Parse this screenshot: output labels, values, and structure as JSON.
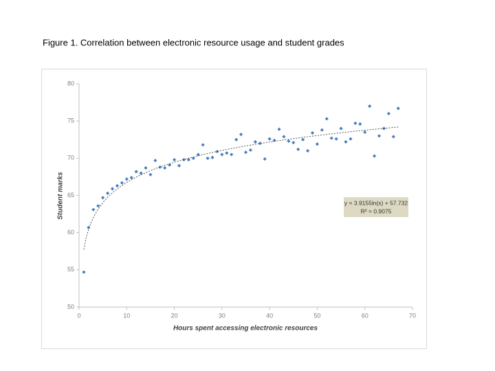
{
  "chart_data": {
    "type": "scatter",
    "title": "Figure 1. Correlation between electronic resource usage and student grades",
    "x_label": "Hours spent accessing electronic resources",
    "y_label": "Student marks",
    "x": [
      1,
      2,
      3,
      4,
      5,
      6,
      7,
      8,
      9,
      10,
      11,
      12,
      13,
      14,
      15,
      16,
      17,
      18,
      19,
      20,
      21,
      22,
      23,
      24,
      25,
      26,
      27,
      28,
      29,
      30,
      31,
      32,
      33,
      34,
      35,
      36,
      37,
      38,
      39,
      40,
      41,
      42,
      43,
      44,
      45,
      46,
      47,
      48,
      49,
      50,
      51,
      52,
      53,
      54,
      55,
      56,
      57,
      58,
      59,
      60,
      61,
      62,
      63,
      64,
      65,
      66,
      67
    ],
    "series": [
      {
        "name": "Student marks",
        "color": "#4a7ebb",
        "values": [
          54.7,
          60.7,
          63.1,
          63.6,
          64.7,
          65.3,
          65.9,
          66.3,
          66.7,
          67.2,
          67.4,
          68.2,
          68.0,
          68.7,
          67.8,
          69.7,
          68.8,
          68.7,
          69.1,
          69.8,
          69.0,
          69.8,
          69.8,
          70.0,
          70.5,
          71.8,
          70.0,
          70.1,
          70.9,
          70.5,
          70.7,
          70.5,
          72.5,
          73.2,
          70.8,
          71.1,
          72.2,
          72.0,
          69.9,
          72.6,
          72.4,
          73.9,
          72.9,
          72.3,
          72.1,
          71.2,
          72.5,
          71.0,
          73.4,
          71.9,
          73.8,
          75.3,
          72.7,
          72.6,
          74.0,
          72.2,
          72.6,
          74.7,
          74.6,
          73.5,
          77.0,
          70.3,
          73.0,
          74.0,
          76.0,
          72.9,
          76.7
        ]
      }
    ],
    "xlim": [
      0,
      70
    ],
    "xticks": [
      0,
      10,
      20,
      30,
      40,
      50,
      60,
      70
    ],
    "ylim": [
      50,
      80
    ],
    "yticks": [
      50,
      55,
      60,
      65,
      70,
      75,
      80
    ],
    "grid": false,
    "trendline": {
      "type": "log",
      "coefficients": [
        3.9155,
        57.732
      ],
      "color": "#404040",
      "equation": "y = 3.9155ln(x) + 57.732",
      "r_squared_label": "R² = 0.9075"
    }
  }
}
